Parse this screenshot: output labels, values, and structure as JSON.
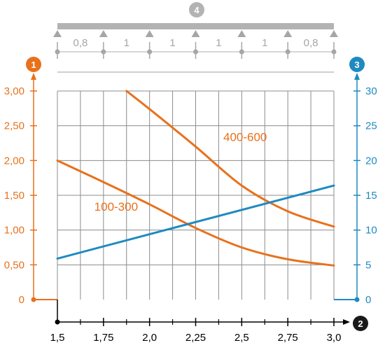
{
  "chart_data": {
    "type": "line",
    "x": {
      "range": [
        1.5,
        3.0
      ],
      "tick_values": [
        1.5,
        1.75,
        2.0,
        2.25,
        2.5,
        2.75,
        3.0
      ],
      "tick_labels": [
        "1,5",
        "1,75",
        "2,0",
        "2,25",
        "2,5",
        "2,75",
        "3,0"
      ],
      "grid_values": [
        1.5,
        1.625,
        1.75,
        1.875,
        2.0,
        2.125,
        2.25,
        2.375,
        2.5,
        2.625,
        2.75,
        2.875,
        3.0
      ],
      "minor_tick_values": [
        1.625,
        1.875,
        2.125,
        2.375,
        2.625,
        2.875
      ],
      "marker": "2"
    },
    "y_left": {
      "range": [
        0,
        3.0
      ],
      "tick_values": [
        0,
        0.5,
        1.0,
        1.5,
        2.0,
        2.5,
        3.0
      ],
      "tick_labels": [
        "0",
        "0,50",
        "1,00",
        "1,50",
        "2,00",
        "2,50",
        "3,00"
      ],
      "marker": "1",
      "color": "#e8711c"
    },
    "y_right": {
      "range": [
        0,
        30
      ],
      "tick_values": [
        0,
        5,
        10,
        15,
        20,
        25,
        30
      ],
      "tick_labels": [
        "0",
        "5",
        "10",
        "15",
        "20",
        "25",
        "30"
      ],
      "marker": "3",
      "color": "#1f8ac0"
    },
    "grid": true,
    "series": [
      {
        "name": "100-300",
        "axis": "left",
        "color": "#e8711c",
        "x": [
          1.5,
          1.75,
          2.0,
          2.25,
          2.5,
          2.75,
          3.0
        ],
        "y": [
          2.0,
          1.69,
          1.37,
          1.03,
          0.75,
          0.58,
          0.49
        ]
      },
      {
        "name": "400-600",
        "axis": "left",
        "color": "#e8711c",
        "x": [
          1.875,
          2.0,
          2.25,
          2.5,
          2.75,
          3.0
        ],
        "y": [
          3.0,
          2.74,
          2.2,
          1.64,
          1.27,
          1.05
        ]
      },
      {
        "axis": "right",
        "color": "#1f8ac0",
        "x": [
          1.5,
          3.0
        ],
        "y": [
          5.9,
          16.4
        ]
      }
    ],
    "annotations": [
      {
        "text": "100-300",
        "x": 1.7,
        "y": 1.28
      },
      {
        "text": "400-600",
        "x": 2.4,
        "y": 2.28
      }
    ],
    "top_diagram": {
      "marker": "4",
      "span_labels": [
        "0,8",
        "1",
        "1",
        "1",
        "1",
        "0,8"
      ],
      "support_x": [
        1.5,
        1.75,
        2.0,
        2.25,
        2.5,
        2.75,
        3.0
      ],
      "color": "#a6a6a6"
    }
  }
}
